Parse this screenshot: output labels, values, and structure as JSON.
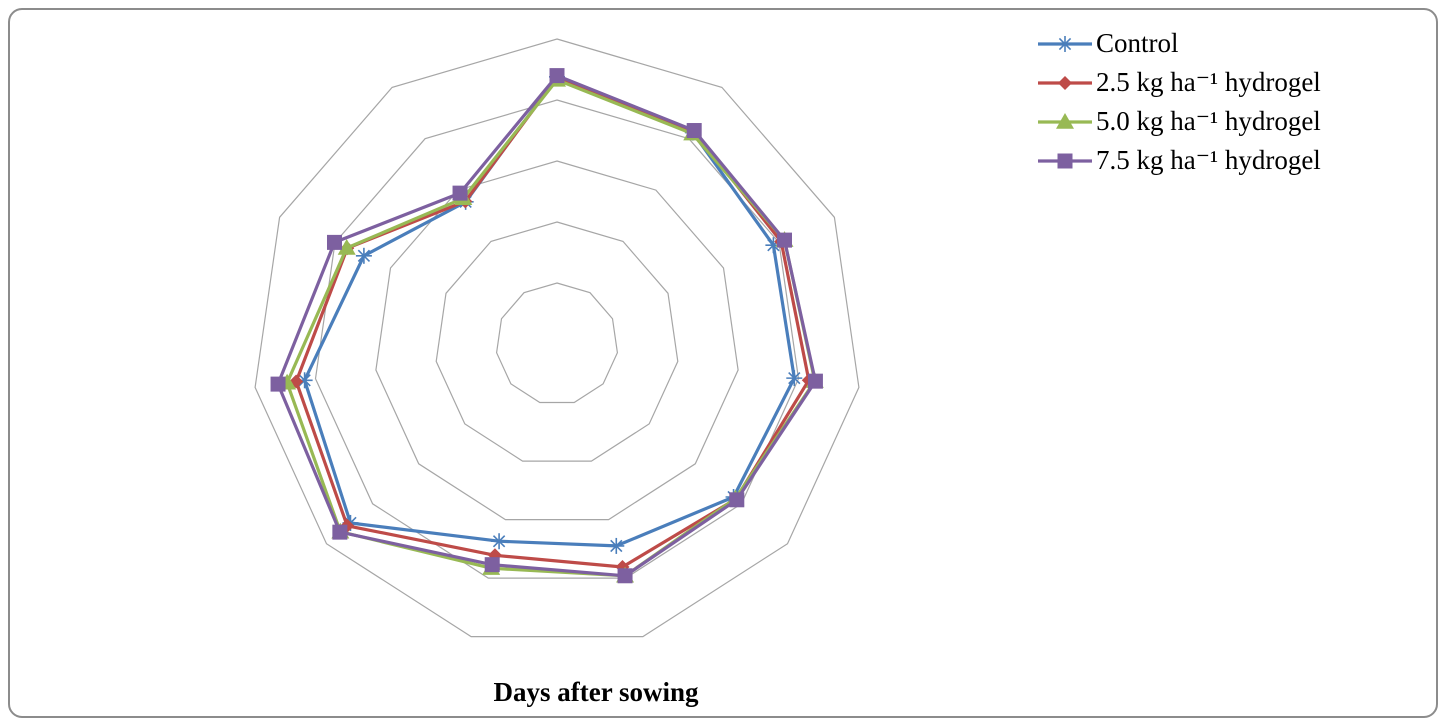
{
  "chart_data": {
    "type": "radar",
    "title": "",
    "xlabel": "Days after sowing",
    "axes_count": 11,
    "rings": 5,
    "max_value": 5,
    "category_labels_shown": false,
    "grid": true,
    "legend_position": "top-right",
    "series": [
      {
        "name": "Control",
        "color": "#4a7ebb",
        "marker": "asterisk",
        "values": [
          4.38,
          4.12,
          3.9,
          3.93,
          3.83,
          3.45,
          3.37,
          4.48,
          4.18,
          3.48,
          2.77
        ]
      },
      {
        "name": "2.5 kg ha⁻¹ hydrogel",
        "color": "#be4b48",
        "marker": "diamond",
        "values": [
          4.36,
          4.15,
          4.04,
          4.17,
          3.88,
          3.81,
          3.61,
          4.55,
          4.32,
          3.78,
          2.78
        ]
      },
      {
        "name": "5.0 kg ha⁻¹ hydrogel",
        "color": "#98b954",
        "marker": "triangle",
        "values": [
          4.33,
          4.1,
          4.1,
          4.27,
          3.87,
          3.96,
          3.83,
          4.7,
          4.47,
          3.79,
          2.84
        ]
      },
      {
        "name": "7.5 kg ha⁻¹ hydrogel",
        "color": "#7d60a0",
        "marker": "square",
        "values": [
          4.4,
          4.16,
          4.1,
          4.28,
          3.9,
          3.96,
          3.77,
          4.71,
          4.62,
          4.01,
          2.94
        ]
      }
    ]
  }
}
